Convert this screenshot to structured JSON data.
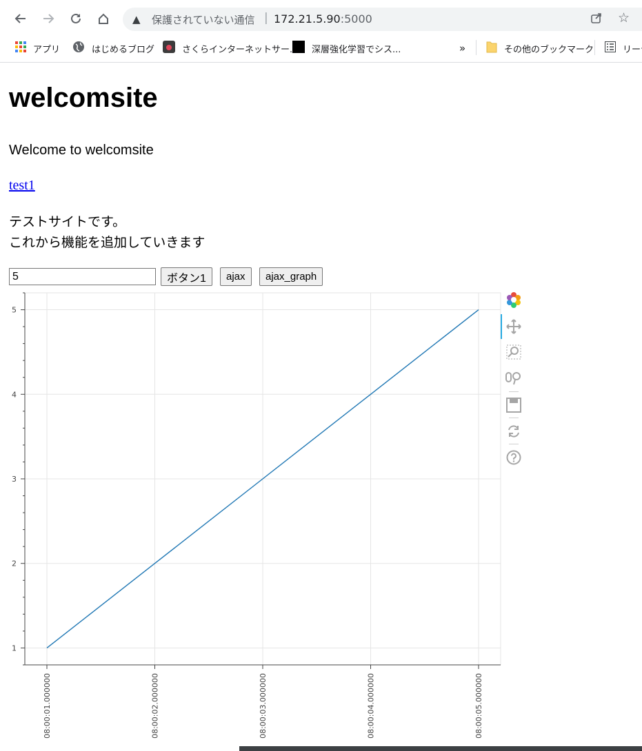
{
  "browser": {
    "security_label": "保護されていない通信",
    "separator": "|",
    "url_host": "172.21.5.90",
    "url_port": ":5000",
    "bookmarks": [
      {
        "label": "アプリ",
        "icon": "apps-grid-icon"
      },
      {
        "label": "はじめるブログ",
        "icon": "globe-icon"
      },
      {
        "label": "さくらインターネットサー...",
        "icon": "sakura-icon"
      },
      {
        "label": "深層強化学習でシス...",
        "icon": "black-square-icon"
      }
    ],
    "overflow": "»",
    "other_bookmarks": "その他のブックマーク",
    "reading_list": "リーデ"
  },
  "page": {
    "heading": "welcomsite",
    "welcome": "Welcome to welcomsite",
    "link": "test1",
    "desc_line1": "テストサイトです。",
    "desc_line2": "これから機能を追加していきます",
    "input_value": "5",
    "button1": "ボタン1",
    "button_ajax": "ajax",
    "button_graph": "ajax_graph"
  },
  "toolbar_icons": [
    "bokeh-logo-icon",
    "pan-icon",
    "box-zoom-icon",
    "wheel-zoom-icon",
    "save-icon",
    "reset-icon",
    "help-icon"
  ],
  "chart_data": {
    "type": "line",
    "title": "",
    "xlabel": "",
    "ylabel": "",
    "x": [
      "08:00:01.000000",
      "08:00:02.000000",
      "08:00:03.000000",
      "08:00:04.000000",
      "08:00:05.000000"
    ],
    "y": [
      1,
      2,
      3,
      4,
      5
    ],
    "ylim": [
      0.8,
      5.2
    ],
    "yticks": [
      1,
      2,
      3,
      4,
      5
    ],
    "grid": true,
    "line_color": "#1f77b4"
  }
}
